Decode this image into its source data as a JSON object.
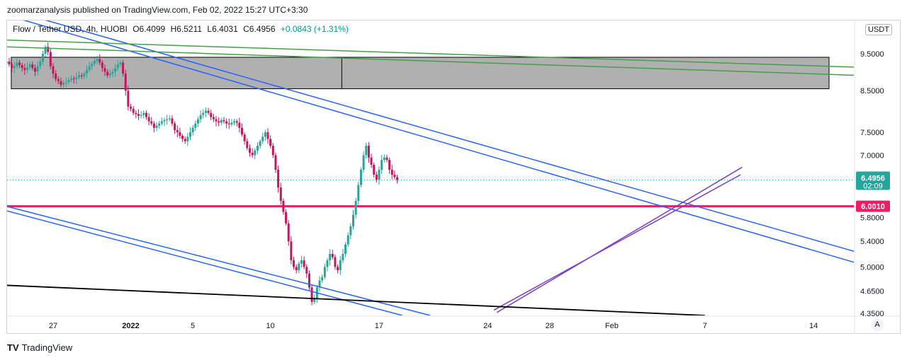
{
  "publisher_line": "zoomarzanalysis published on TradingView.com, Feb 02, 2022 15:27 UTC+3:30",
  "legend": {
    "symbol": "Flow / Tether USD, 4h, HUOBI",
    "open": "O6.4099",
    "high": "H6.5211",
    "low": "L6.4031",
    "close": "C6.4956",
    "change": "+0.0843 (+1.31%)"
  },
  "currency_button": "USDT",
  "auto_button": "A",
  "footer": {
    "logo": "TV",
    "brand": "TradingView"
  },
  "colors": {
    "up": "#26a69a",
    "down": "#c2185b",
    "blue_line": "#2962ff",
    "green_line": "#43a047",
    "purple_line": "#7e3fbf",
    "support": "#e91e63",
    "zone_fill": "#b0b0b0"
  },
  "chart_data": {
    "type": "candlestick",
    "symbol": "Flow / Tether USD",
    "interval": "4h",
    "exchange": "HUOBI",
    "y_scale": "log",
    "ylim": [
      4.32,
      10.5
    ],
    "x_tick_labels": [
      {
        "label": "27",
        "day": 0
      },
      {
        "label": "2022",
        "day": 5
      },
      {
        "label": "5",
        "day": 9
      },
      {
        "label": "10",
        "day": 14
      },
      {
        "label": "17",
        "day": 21
      },
      {
        "label": "24",
        "day": 28
      },
      {
        "label": "28",
        "day": 32
      },
      {
        "label": "Feb",
        "day": 36
      },
      {
        "label": "7",
        "day": 42
      },
      {
        "label": "14",
        "day": 49
      }
    ],
    "y_ticks": [
      9.5,
      8.5,
      7.5,
      7.0,
      6.4956,
      6.001,
      5.8,
      5.4,
      5.0,
      4.65,
      4.35
    ],
    "y_tick_labels": [
      "9.5000",
      "8.5000",
      "7.5000",
      "7.0000",
      "6.4956",
      "6.0010",
      "5.8000",
      "5.4000",
      "5.0000",
      "4.6500",
      "4.3500"
    ],
    "last_price": {
      "value": 6.4956,
      "label": "6.4956",
      "countdown": "02:09"
    },
    "support_level": {
      "value": 6.001,
      "label": "6.0010"
    },
    "zone": {
      "from_day": -2.7,
      "to_day": 50,
      "low": 8.55,
      "high": 9.4,
      "divider_day": 18.6
    },
    "trendlines": [
      {
        "kind": "blue",
        "points": [
          [
            -3.2,
            10.9
          ],
          [
            51.9,
            5.22
          ]
        ]
      },
      {
        "kind": "blue",
        "points": [
          [
            -3.2,
            10.7
          ],
          [
            51.9,
            5.05
          ]
        ]
      },
      {
        "kind": "blue",
        "points": [
          [
            -3.0,
            6.0
          ],
          [
            24.3,
            4.32
          ]
        ]
      },
      {
        "kind": "blue",
        "points": [
          [
            -3.0,
            5.92
          ],
          [
            22.5,
            4.32
          ]
        ]
      },
      {
        "kind": "green",
        "points": [
          [
            -3.0,
            9.9
          ],
          [
            52.0,
            9.12
          ]
        ]
      },
      {
        "kind": "green",
        "points": [
          [
            -3.0,
            9.7
          ],
          [
            52.0,
            8.9
          ]
        ]
      },
      {
        "kind": "purple",
        "points": [
          [
            28.6,
            4.36
          ],
          [
            44.4,
            6.75
          ]
        ]
      },
      {
        "kind": "purple",
        "points": [
          [
            28.4,
            4.39
          ],
          [
            44.3,
            6.6
          ]
        ]
      },
      {
        "kind": "black",
        "points": [
          [
            -3.0,
            4.73
          ],
          [
            42.0,
            4.32
          ]
        ]
      }
    ],
    "close_series_days": [
      -3.0,
      36.9
    ],
    "close_series_step": 0.1667,
    "closes": [
      9.28,
      9.2,
      9.1,
      9.15,
      9.25,
      9.18,
      9.1,
      9.05,
      9.12,
      9.2,
      9.1,
      9.0,
      9.15,
      9.28,
      9.5,
      9.7,
      9.55,
      9.15,
      8.95,
      8.8,
      8.75,
      8.65,
      8.7,
      8.72,
      8.78,
      8.82,
      8.8,
      8.85,
      8.9,
      8.88,
      8.95,
      9.05,
      9.15,
      9.22,
      9.3,
      9.35,
      9.25,
      9.1,
      9.0,
      8.9,
      8.95,
      9.0,
      9.1,
      9.2,
      9.25,
      8.95,
      8.5,
      8.1,
      8.05,
      7.95,
      7.92,
      7.88,
      7.9,
      7.95,
      7.85,
      7.75,
      7.7,
      7.6,
      7.65,
      7.7,
      7.75,
      7.78,
      7.8,
      7.82,
      7.7,
      7.55,
      7.5,
      7.42,
      7.35,
      7.3,
      7.4,
      7.5,
      7.6,
      7.7,
      7.8,
      7.9,
      7.95,
      8.0,
      7.95,
      7.85,
      7.8,
      7.75,
      7.72,
      7.78,
      7.75,
      7.7,
      7.68,
      7.72,
      7.75,
      7.72,
      7.6,
      7.45,
      7.3,
      7.15,
      7.05,
      7.0,
      7.1,
      7.2,
      7.3,
      7.4,
      7.5,
      7.35,
      7.2,
      7.0,
      6.7,
      6.35,
      6.1,
      5.9,
      5.7,
      5.4,
      5.1,
      5.0,
      4.95,
      5.05,
      5.1,
      5.0,
      4.9,
      4.7,
      4.5,
      4.55,
      4.7,
      4.8,
      4.85,
      5.0,
      5.1,
      5.2,
      5.15,
      5.0,
      4.95,
      5.1,
      5.2,
      5.35,
      5.5,
      5.65,
      5.85,
      6.1,
      6.4,
      6.7,
      7.0,
      7.2,
      6.95,
      6.8,
      6.6,
      6.5,
      6.7,
      6.9,
      6.95,
      6.9,
      6.7,
      6.6,
      6.55,
      6.4956
    ],
    "series_name": "Flow / Tether USD"
  }
}
